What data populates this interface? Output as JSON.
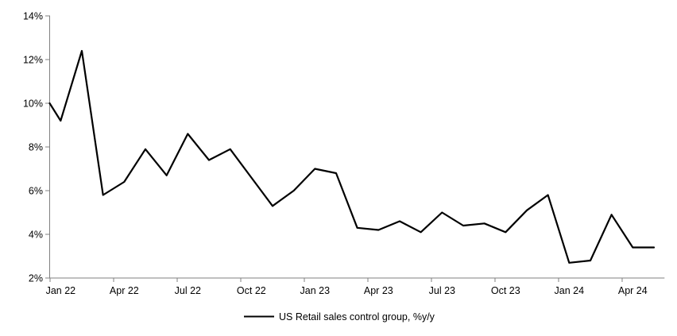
{
  "chart_data": {
    "type": "line",
    "title": "",
    "xlabel": "",
    "ylabel": "",
    "ylim": [
      2,
      14
    ],
    "y_tick_step": 2,
    "grid": false,
    "legend_position": "bottom-center",
    "axis_color": "#808080",
    "line_color": "#000000",
    "text_color": "#000000",
    "y_tick_labels": [
      "14%",
      "12%",
      "10%",
      "8%",
      "6%",
      "4%",
      "2%"
    ],
    "x_tick_labels": [
      "Jan 22",
      "Apr 22",
      "Jul 22",
      "Oct 22",
      "Jan 23",
      "Apr 23",
      "Jul 23",
      "Oct 23",
      "Jan 24",
      "Apr 24"
    ],
    "x": [
      "Jan 22",
      "Feb 22",
      "Mar 22",
      "Apr 22",
      "May 22",
      "Jun 22",
      "Jul 22",
      "Aug 22",
      "Sep 22",
      "Oct 22",
      "Nov 22",
      "Dec 22",
      "Jan 23",
      "Feb 23",
      "Mar 23",
      "Apr 23",
      "May 23",
      "Jun 23",
      "Jul 23",
      "Aug 23",
      "Sep 23",
      "Oct 23",
      "Nov 23",
      "Dec 23",
      "Jan 24",
      "Feb 24",
      "Mar 24",
      "Apr 24",
      "May 24"
    ],
    "clipped_start_value_at_left_axis": 10.0,
    "series": [
      {
        "name": "US Retail sales control group, %y/y",
        "values": [
          9.2,
          12.4,
          5.8,
          6.4,
          7.9,
          6.7,
          8.6,
          7.4,
          7.9,
          6.6,
          5.3,
          6.0,
          7.0,
          6.8,
          4.3,
          4.2,
          4.6,
          4.1,
          5.0,
          4.4,
          4.5,
          4.1,
          5.1,
          5.8,
          2.7,
          2.8,
          4.9,
          3.4,
          3.4
        ]
      }
    ],
    "legend": {
      "label": "US Retail sales control group, %y/y"
    }
  }
}
